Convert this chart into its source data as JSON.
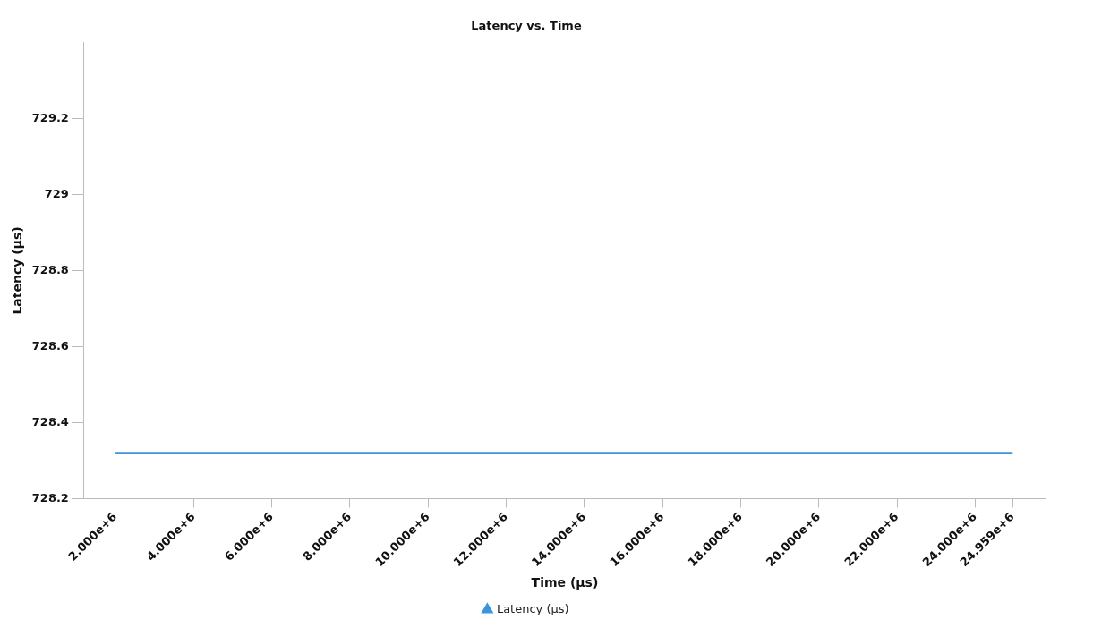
{
  "chart_data": {
    "type": "line",
    "title": "Latency vs. Time",
    "xlabel": "Time (µs)",
    "ylabel": "Latency (µs)",
    "x": [
      2000000,
      24959000
    ],
    "series": [
      {
        "name": "Latency (µs)",
        "color": "#3d95dc",
        "values": [
          728.32,
          728.32
        ]
      }
    ],
    "xlim": [
      1200000,
      25800000
    ],
    "xticks": [
      {
        "value": 2000000,
        "label": "2.000e+6"
      },
      {
        "value": 4000000,
        "label": "4.000e+6"
      },
      {
        "value": 6000000,
        "label": "6.000e+6"
      },
      {
        "value": 8000000,
        "label": "8.000e+6"
      },
      {
        "value": 10000000,
        "label": "10.000e+6"
      },
      {
        "value": 12000000,
        "label": "12.000e+6"
      },
      {
        "value": 14000000,
        "label": "14.000e+6"
      },
      {
        "value": 16000000,
        "label": "16.000e+6"
      },
      {
        "value": 18000000,
        "label": "18.000e+6"
      },
      {
        "value": 20000000,
        "label": "20.000e+6"
      },
      {
        "value": 22000000,
        "label": "22.000e+6"
      },
      {
        "value": 24000000,
        "label": "24.000e+6"
      },
      {
        "value": 24959000,
        "label": "24.959e+6"
      }
    ],
    "ylim": [
      728.2,
      729.4
    ],
    "yticks": [
      728.2,
      728.4,
      728.6,
      728.8,
      729,
      729.2
    ],
    "grid": false,
    "legend": "bottom"
  }
}
